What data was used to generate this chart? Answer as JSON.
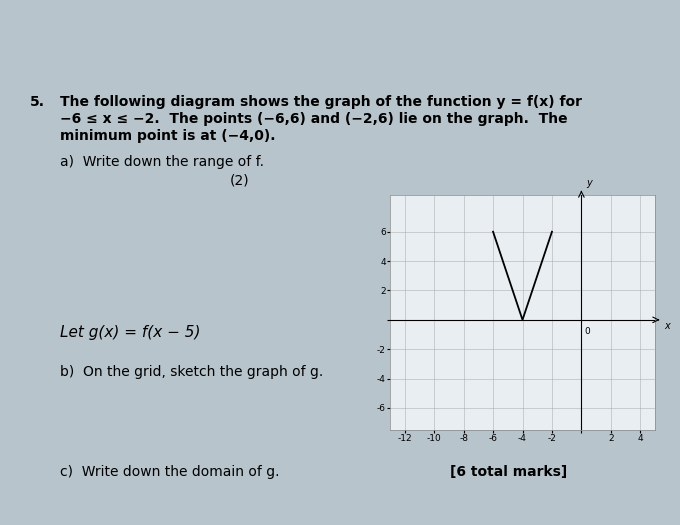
{
  "page_background": "#b8c4cc",
  "graph_background": "#e8eef2",
  "question_number": "5.",
  "question_text_line1": "The following diagram shows the graph of the function y = f(x) for",
  "question_text_line2": "−6 ≤ x ≤ −2.  The points (−6,6) and (−2,6) lie on the graph.  The",
  "question_text_line3": "minimum point is at (−4,0).",
  "part_a_text": "a)  Write down the range of f.",
  "part_a_marks": "(2)",
  "let_text": "Let g(x) = f(x − 5)",
  "part_b_text": "b)  On the grid, sketch the graph of g.",
  "part_c_text": "c)  Write down the domain of g.",
  "total_marks": "[6 total marks]",
  "graph": {
    "xlim": [
      -13,
      5
    ],
    "ylim": [
      -7.5,
      8.5
    ],
    "xticks": [
      -12,
      -10,
      -8,
      -6,
      -4,
      -2,
      2,
      4
    ],
    "yticks": [
      -6,
      -4,
      -2,
      2,
      4,
      6
    ],
    "curve_x": [
      -6,
      -4,
      -2
    ],
    "curve_y": [
      6,
      0,
      6
    ],
    "grid_color": "#999999",
    "line_color": "#000000",
    "axis_color": "#000000"
  }
}
